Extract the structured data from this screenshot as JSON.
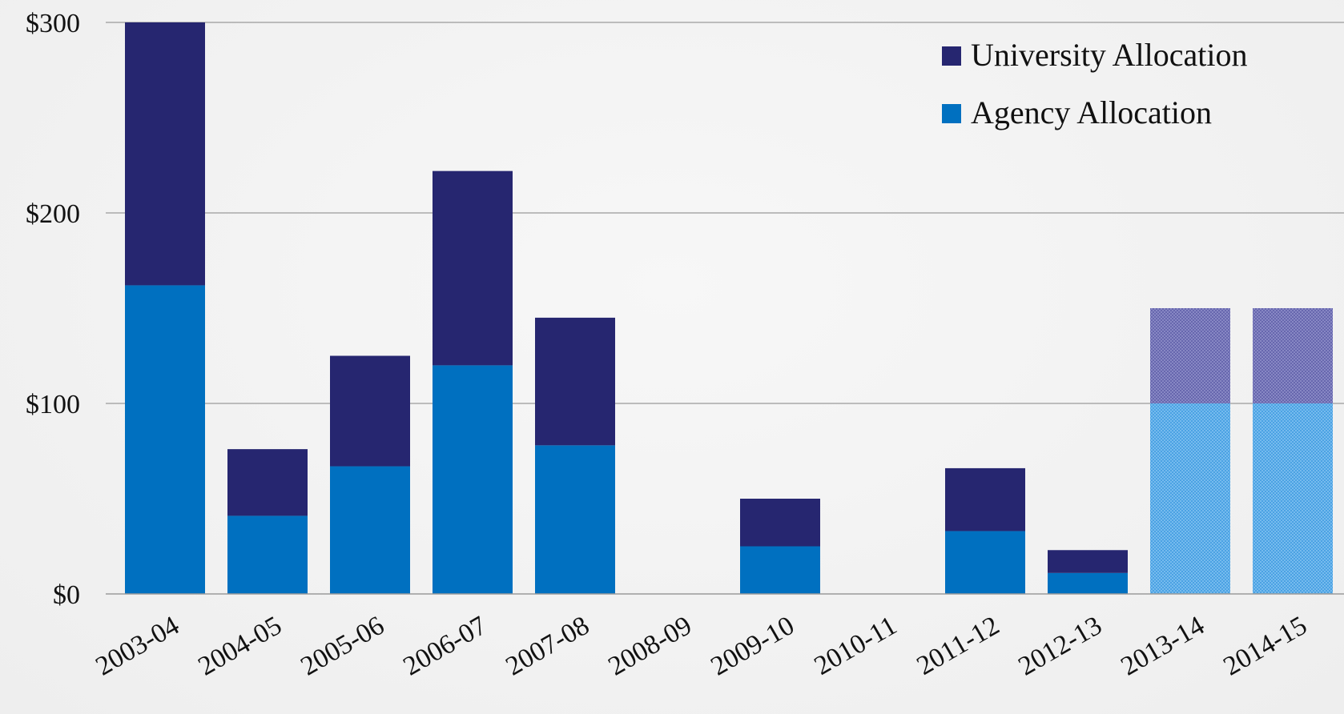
{
  "chart_data": {
    "type": "bar",
    "stacked": true,
    "categories": [
      "2003-04",
      "2004-05",
      "2005-06",
      "2006-07",
      "2007-08",
      "2008-09",
      "2009-10",
      "2010-11",
      "2011-12",
      "2012-13",
      "2013-14",
      "2014-15"
    ],
    "series": [
      {
        "name": "Agency Allocation",
        "color": "#0070C0",
        "values": [
          162,
          41,
          67,
          120,
          78,
          0,
          25,
          0,
          33,
          11,
          100,
          100
        ]
      },
      {
        "name": "University Allocation",
        "color": "#262670",
        "values": [
          138,
          35,
          58,
          102,
          67,
          0,
          25,
          0,
          33,
          12,
          50,
          50
        ]
      }
    ],
    "projected_categories": [
      "2013-14",
      "2014-15"
    ],
    "projected_style": "hatched",
    "y_ticks": [
      "$0",
      "$100",
      "$200",
      "$300"
    ],
    "y_tick_values": [
      0,
      100,
      200,
      300
    ],
    "ylim": [
      0,
      300
    ],
    "grid": true,
    "legend": {
      "placement": "top-right",
      "order": [
        "University Allocation",
        "Agency Allocation"
      ]
    },
    "title": "",
    "xlabel": "",
    "ylabel": ""
  }
}
